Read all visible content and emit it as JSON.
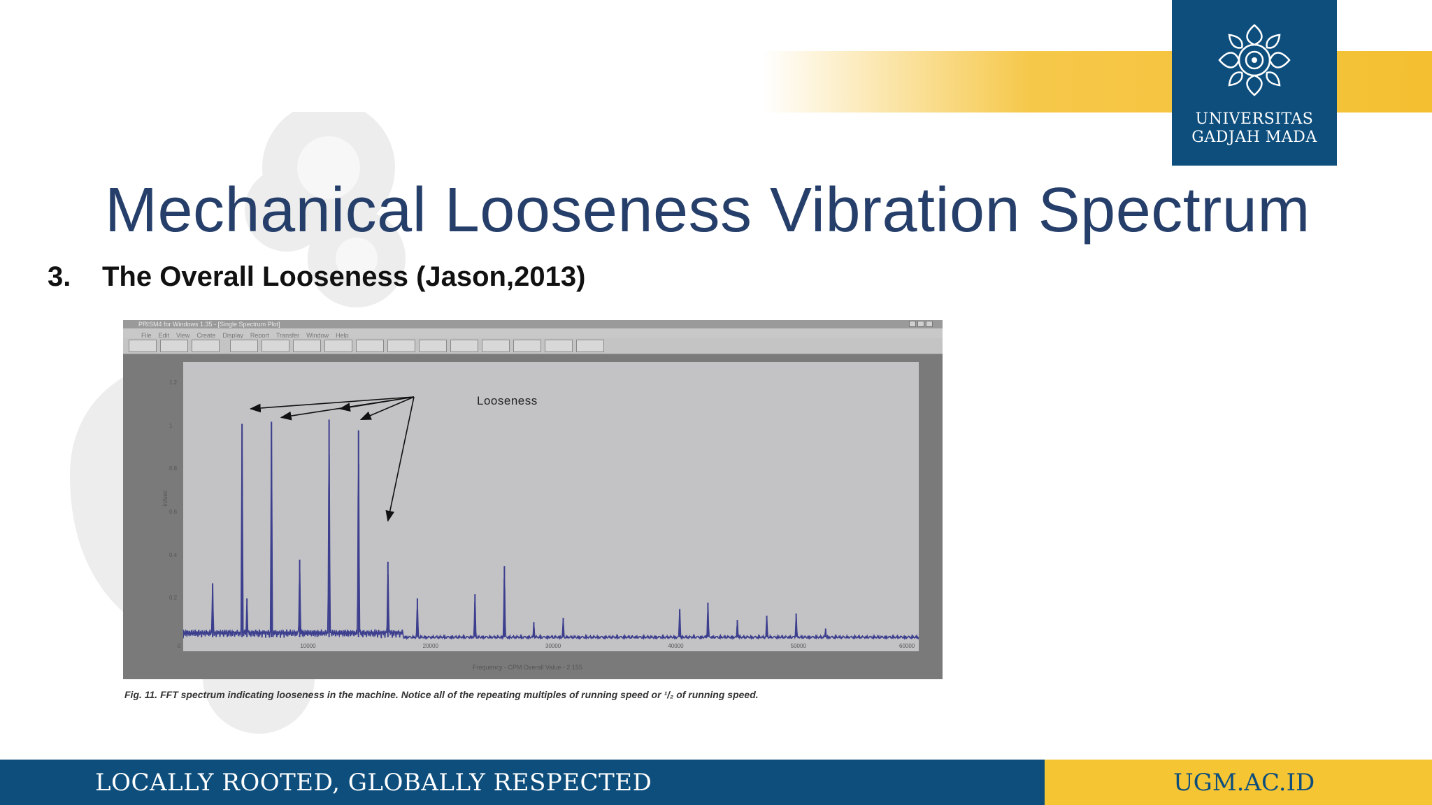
{
  "slide": {
    "title": "Mechanical Looseness Vibration Spectrum",
    "subtitle_number": "3.",
    "subtitle_text": "The Overall Looseness (Jason,2013)"
  },
  "logo": {
    "line1": "UNIVERSITAS",
    "line2": "GADJAH MADA"
  },
  "screenshot": {
    "window_title": "PRISM4 for Windows 1.35 - [Single Spectrum Plot]",
    "menu": [
      "File",
      "Edit",
      "View",
      "Create",
      "Display",
      "Report",
      "Transfer",
      "Window",
      "Help"
    ],
    "annotation": "Looseness",
    "caption": "Fig. 11. FFT spectrum indicating looseness in the machine. Notice all of the repeating multiples of running speed or ¹/₂ of running speed.",
    "xlabel": "Frequency - CPM   Overall Value - 2.155",
    "ylabel": "in/sec"
  },
  "chart_data": {
    "type": "line",
    "xlim": [
      0,
      60000
    ],
    "ylim": [
      0,
      1.2
    ],
    "x_ticks": [
      "0",
      "10000",
      "20000",
      "30000",
      "40000",
      "50000",
      "60000"
    ],
    "y_ticks": [
      "0.2",
      "0.4",
      "0.6",
      "0.8",
      "1",
      "1.2"
    ],
    "peaks": [
      {
        "x": 2400,
        "y": 0.27
      },
      {
        "x": 4800,
        "y": 1.01
      },
      {
        "x": 5200,
        "y": 0.2
      },
      {
        "x": 7200,
        "y": 1.02
      },
      {
        "x": 9500,
        "y": 0.38
      },
      {
        "x": 11900,
        "y": 1.03
      },
      {
        "x": 14300,
        "y": 0.98
      },
      {
        "x": 16700,
        "y": 0.37
      },
      {
        "x": 19100,
        "y": 0.2
      },
      {
        "x": 23800,
        "y": 0.22
      },
      {
        "x": 26200,
        "y": 0.35
      },
      {
        "x": 28600,
        "y": 0.09
      },
      {
        "x": 31000,
        "y": 0.11
      },
      {
        "x": 40500,
        "y": 0.15
      },
      {
        "x": 42800,
        "y": 0.18
      },
      {
        "x": 45200,
        "y": 0.1
      },
      {
        "x": 47600,
        "y": 0.12
      },
      {
        "x": 50000,
        "y": 0.13
      },
      {
        "x": 52400,
        "y": 0.06
      }
    ],
    "annotation_arrow_targets": [
      {
        "x": 5500,
        "y": 1.08
      },
      {
        "x": 8000,
        "y": 1.04
      },
      {
        "x": 12800,
        "y": 1.08
      },
      {
        "x": 14500,
        "y": 1.03
      },
      {
        "x": 16700,
        "y": 0.56
      }
    ],
    "line_color": "#3c3e8e"
  },
  "footer": {
    "tagline": "LOCALLY ROOTED, GLOBALLY RESPECTED",
    "site": "UGM.AC.ID"
  }
}
